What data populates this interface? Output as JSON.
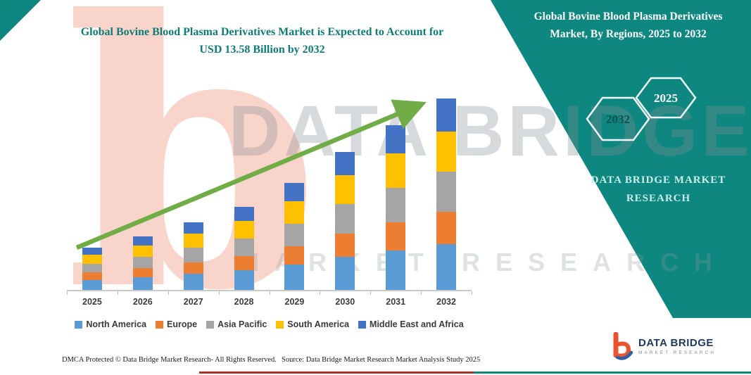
{
  "main_title": "Global Bovine Blood Plasma Derivatives Market is Expected to Account for USD 13.58 Billion by 2032",
  "side_panel": {
    "title": "Global Bovine Blood Plasma Derivatives Market, By Regions, 2025 to 2032",
    "hexagons": [
      {
        "label": "2032"
      },
      {
        "label": "2025"
      }
    ],
    "brand_line1": "DATA BRIDGE MARKET",
    "brand_line2": "RESEARCH"
  },
  "watermark": {
    "letter": "b",
    "brand": "DATA BRIDGE",
    "sub": "MARKET RESEARCH"
  },
  "footer": {
    "dmca": "DMCA Protected © Data Bridge Market Research-  All Rights Reserved.",
    "source": "Source: Data Bridge Market Research  Market Analysis Study 2025"
  },
  "logo": {
    "brand": "DATA BRIDGE",
    "sub": "MARKET RESEARCH"
  },
  "chart_data": {
    "type": "bar",
    "stacked": true,
    "title": "Global Bovine Blood Plasma Derivatives Market is Expected to Account for USD 13.58 Billion by 2032",
    "unit": "USD Billion",
    "categories": [
      "2025",
      "2026",
      "2027",
      "2028",
      "2029",
      "2030",
      "2031",
      "2032"
    ],
    "series": [
      {
        "name": "North America",
        "color": "#5B9BD5",
        "values": [
          0.72,
          0.91,
          1.15,
          1.42,
          1.82,
          2.35,
          2.81,
          3.26
        ]
      },
      {
        "name": "Europe",
        "color": "#ED7D31",
        "values": [
          0.51,
          0.65,
          0.82,
          1.0,
          1.29,
          1.67,
          1.99,
          2.31
        ]
      },
      {
        "name": "Asia Pacific",
        "color": "#A5A5A5",
        "values": [
          0.63,
          0.8,
          1.01,
          1.24,
          1.6,
          2.06,
          2.46,
          2.85
        ]
      },
      {
        "name": "South America",
        "color": "#FFC000",
        "values": [
          0.63,
          0.8,
          1.01,
          1.24,
          1.6,
          2.06,
          2.46,
          2.85
        ]
      },
      {
        "name": "Middle East and Africa",
        "color": "#4472C4",
        "values": [
          0.51,
          0.64,
          0.81,
          1.0,
          1.29,
          1.66,
          1.98,
          2.31
        ]
      }
    ],
    "totals": [
      3.0,
      3.8,
      4.8,
      5.9,
      7.6,
      9.8,
      11.7,
      13.58
    ],
    "ylim": [
      0,
      14
    ],
    "grid": false,
    "legend_position": "bottom",
    "trend_arrow": true,
    "trend_arrow_color": "#70AD47"
  },
  "colors": {
    "teal": "#0F8781",
    "title_teal": "#0E7C78",
    "arrow_green": "#70AD47",
    "footer_line_red": "#A93226",
    "logo_navy": "#1E3A5F"
  }
}
